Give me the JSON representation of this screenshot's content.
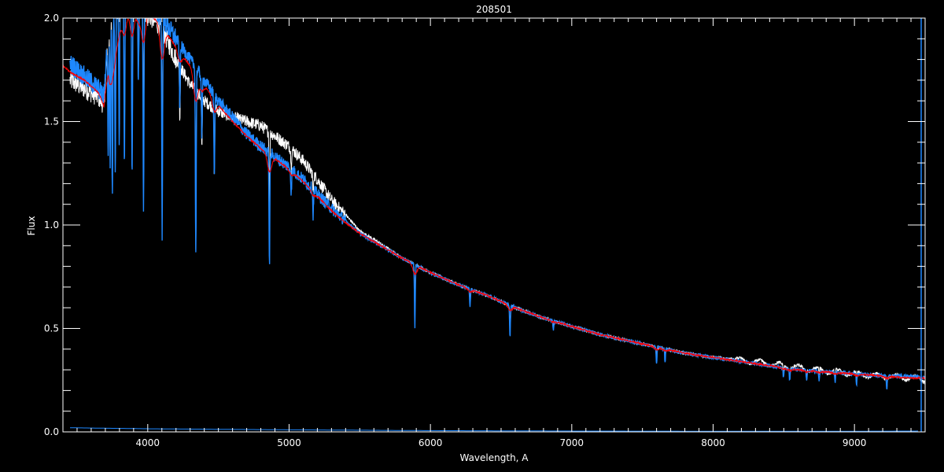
{
  "chart_data": {
    "type": "line",
    "title": "208501",
    "xlabel": "Wavelength, A",
    "ylabel": "Flux",
    "xlim": [
      3400,
      9500
    ],
    "ylim": [
      0.0,
      2.0
    ],
    "xticks": [
      4000,
      5000,
      6000,
      7000,
      8000,
      9000
    ],
    "xtick_labels": [
      "4000",
      "5000",
      "6000",
      "7000",
      "8000",
      "9000"
    ],
    "yticks": [
      0.0,
      0.5,
      1.0,
      1.5,
      2.0
    ],
    "ytick_labels": [
      "0.0",
      "0.5",
      "1.0",
      "1.5",
      "2.0"
    ],
    "grid": false,
    "background": "#000000",
    "series": [
      {
        "color": "#ffffff",
        "x": [
          3450,
          3550,
          3650,
          3690,
          3720,
          3800,
          3900,
          4000,
          4100,
          4200,
          4300,
          4400,
          4500,
          4600,
          4700,
          4800,
          4900,
          5000,
          5100,
          5200,
          5300,
          5400,
          5500,
          5600,
          5800,
          6000,
          6200,
          6400,
          6600,
          6800,
          7000,
          7200,
          7400,
          7600,
          7800,
          8000,
          8200,
          8400,
          8600,
          8800,
          9000,
          9200,
          9400,
          9500
        ],
        "y": [
          1.7,
          1.66,
          1.62,
          1.58,
          1.9,
          2.05,
          2.05,
          2.02,
          1.95,
          1.8,
          1.68,
          1.6,
          1.55,
          1.52,
          1.5,
          1.48,
          1.43,
          1.38,
          1.31,
          1.22,
          1.12,
          1.05,
          0.97,
          0.93,
          0.84,
          0.77,
          0.71,
          0.66,
          0.6,
          0.55,
          0.51,
          0.47,
          0.44,
          0.41,
          0.38,
          0.36,
          0.345,
          0.33,
          0.31,
          0.295,
          0.28,
          0.27,
          0.26,
          0.25
        ]
      },
      {
        "color": "#1e88ff",
        "x": [
          3450,
          3550,
          3650,
          3690,
          3720,
          3800,
          3900,
          4000,
          4100,
          4200,
          4300,
          4400,
          4500,
          4600,
          4700,
          4800,
          4900,
          5000,
          5100,
          5200,
          5300,
          5400,
          5500,
          5600,
          5800,
          6000,
          6200,
          6400,
          6600,
          6800,
          7000,
          7200,
          7400,
          7600,
          7800,
          8000,
          8200,
          8400,
          8600,
          8800,
          9000,
          9200,
          9400,
          9500
        ],
        "y": [
          1.78,
          1.72,
          1.66,
          1.62,
          1.95,
          2.1,
          2.1,
          2.06,
          2.0,
          1.9,
          1.8,
          1.7,
          1.6,
          1.52,
          1.44,
          1.38,
          1.33,
          1.28,
          1.22,
          1.15,
          1.08,
          1.02,
          0.96,
          0.92,
          0.84,
          0.77,
          0.71,
          0.66,
          0.6,
          0.55,
          0.51,
          0.47,
          0.44,
          0.41,
          0.38,
          0.36,
          0.34,
          0.32,
          0.3,
          0.29,
          0.28,
          0.27,
          0.27,
          0.26
        ]
      },
      {
        "color": "#ff0000",
        "x": [
          3400,
          3450,
          3550,
          3650,
          3690,
          3720,
          3800,
          3900,
          4000,
          4100,
          4200,
          4300,
          4400,
          4500,
          4600,
          4700,
          4800,
          4900,
          5000,
          5100,
          5200,
          5300,
          5400,
          5500,
          5600,
          5800,
          6000,
          6200,
          6400,
          6600,
          6800,
          7000,
          7200,
          7400,
          7600,
          7800,
          8000,
          8200,
          8400,
          8600,
          8800,
          9000,
          9200,
          9400,
          9500
        ],
        "y": [
          1.77,
          1.74,
          1.7,
          1.64,
          1.58,
          1.9,
          2.05,
          2.05,
          2.03,
          1.96,
          1.86,
          1.77,
          1.68,
          1.58,
          1.5,
          1.43,
          1.37,
          1.32,
          1.27,
          1.21,
          1.14,
          1.07,
          1.01,
          0.96,
          0.92,
          0.84,
          0.77,
          0.71,
          0.66,
          0.6,
          0.55,
          0.51,
          0.47,
          0.44,
          0.41,
          0.38,
          0.36,
          0.34,
          0.32,
          0.3,
          0.29,
          0.28,
          0.27,
          0.26,
          0.26
        ]
      },
      {
        "color": "#1e88ff",
        "x": [
          3450,
          4000,
          5000,
          6000,
          7000,
          8000,
          9000,
          9450
        ],
        "y": [
          0.02,
          0.015,
          0.01,
          0.006,
          0.004,
          0.003,
          0.003,
          0.004
        ]
      }
    ],
    "absorption_lines": [
      {
        "x": 3720,
        "depth": 0.6
      },
      {
        "x": 3734,
        "depth": 0.7
      },
      {
        "x": 3750,
        "depth": 0.9
      },
      {
        "x": 3770,
        "depth": 0.8
      },
      {
        "x": 3798,
        "depth": 0.7
      },
      {
        "x": 3835,
        "depth": 0.85
      },
      {
        "x": 3889,
        "depth": 0.9
      },
      {
        "x": 3934,
        "depth": 0.4
      },
      {
        "x": 3970,
        "depth": 1.0
      },
      {
        "x": 4102,
        "depth": 1.05
      },
      {
        "x": 4227,
        "depth": 0.3
      },
      {
        "x": 4340,
        "depth": 0.9
      },
      {
        "x": 4383,
        "depth": 0.3
      },
      {
        "x": 4471,
        "depth": 0.4
      },
      {
        "x": 4861,
        "depth": 0.55
      },
      {
        "x": 5015,
        "depth": 0.12
      },
      {
        "x": 5170,
        "depth": 0.12
      },
      {
        "x": 5890,
        "depth": 0.3
      },
      {
        "x": 6280,
        "depth": 0.08
      },
      {
        "x": 6563,
        "depth": 0.15
      },
      {
        "x": 6870,
        "depth": 0.04
      },
      {
        "x": 7600,
        "depth": 0.08
      },
      {
        "x": 7660,
        "depth": 0.06
      },
      {
        "x": 8498,
        "depth": 0.05
      },
      {
        "x": 8542,
        "depth": 0.06
      },
      {
        "x": 8662,
        "depth": 0.05
      },
      {
        "x": 8750,
        "depth": 0.04
      },
      {
        "x": 8863,
        "depth": 0.05
      },
      {
        "x": 9015,
        "depth": 0.05
      },
      {
        "x": 9229,
        "depth": 0.06
      }
    ]
  }
}
